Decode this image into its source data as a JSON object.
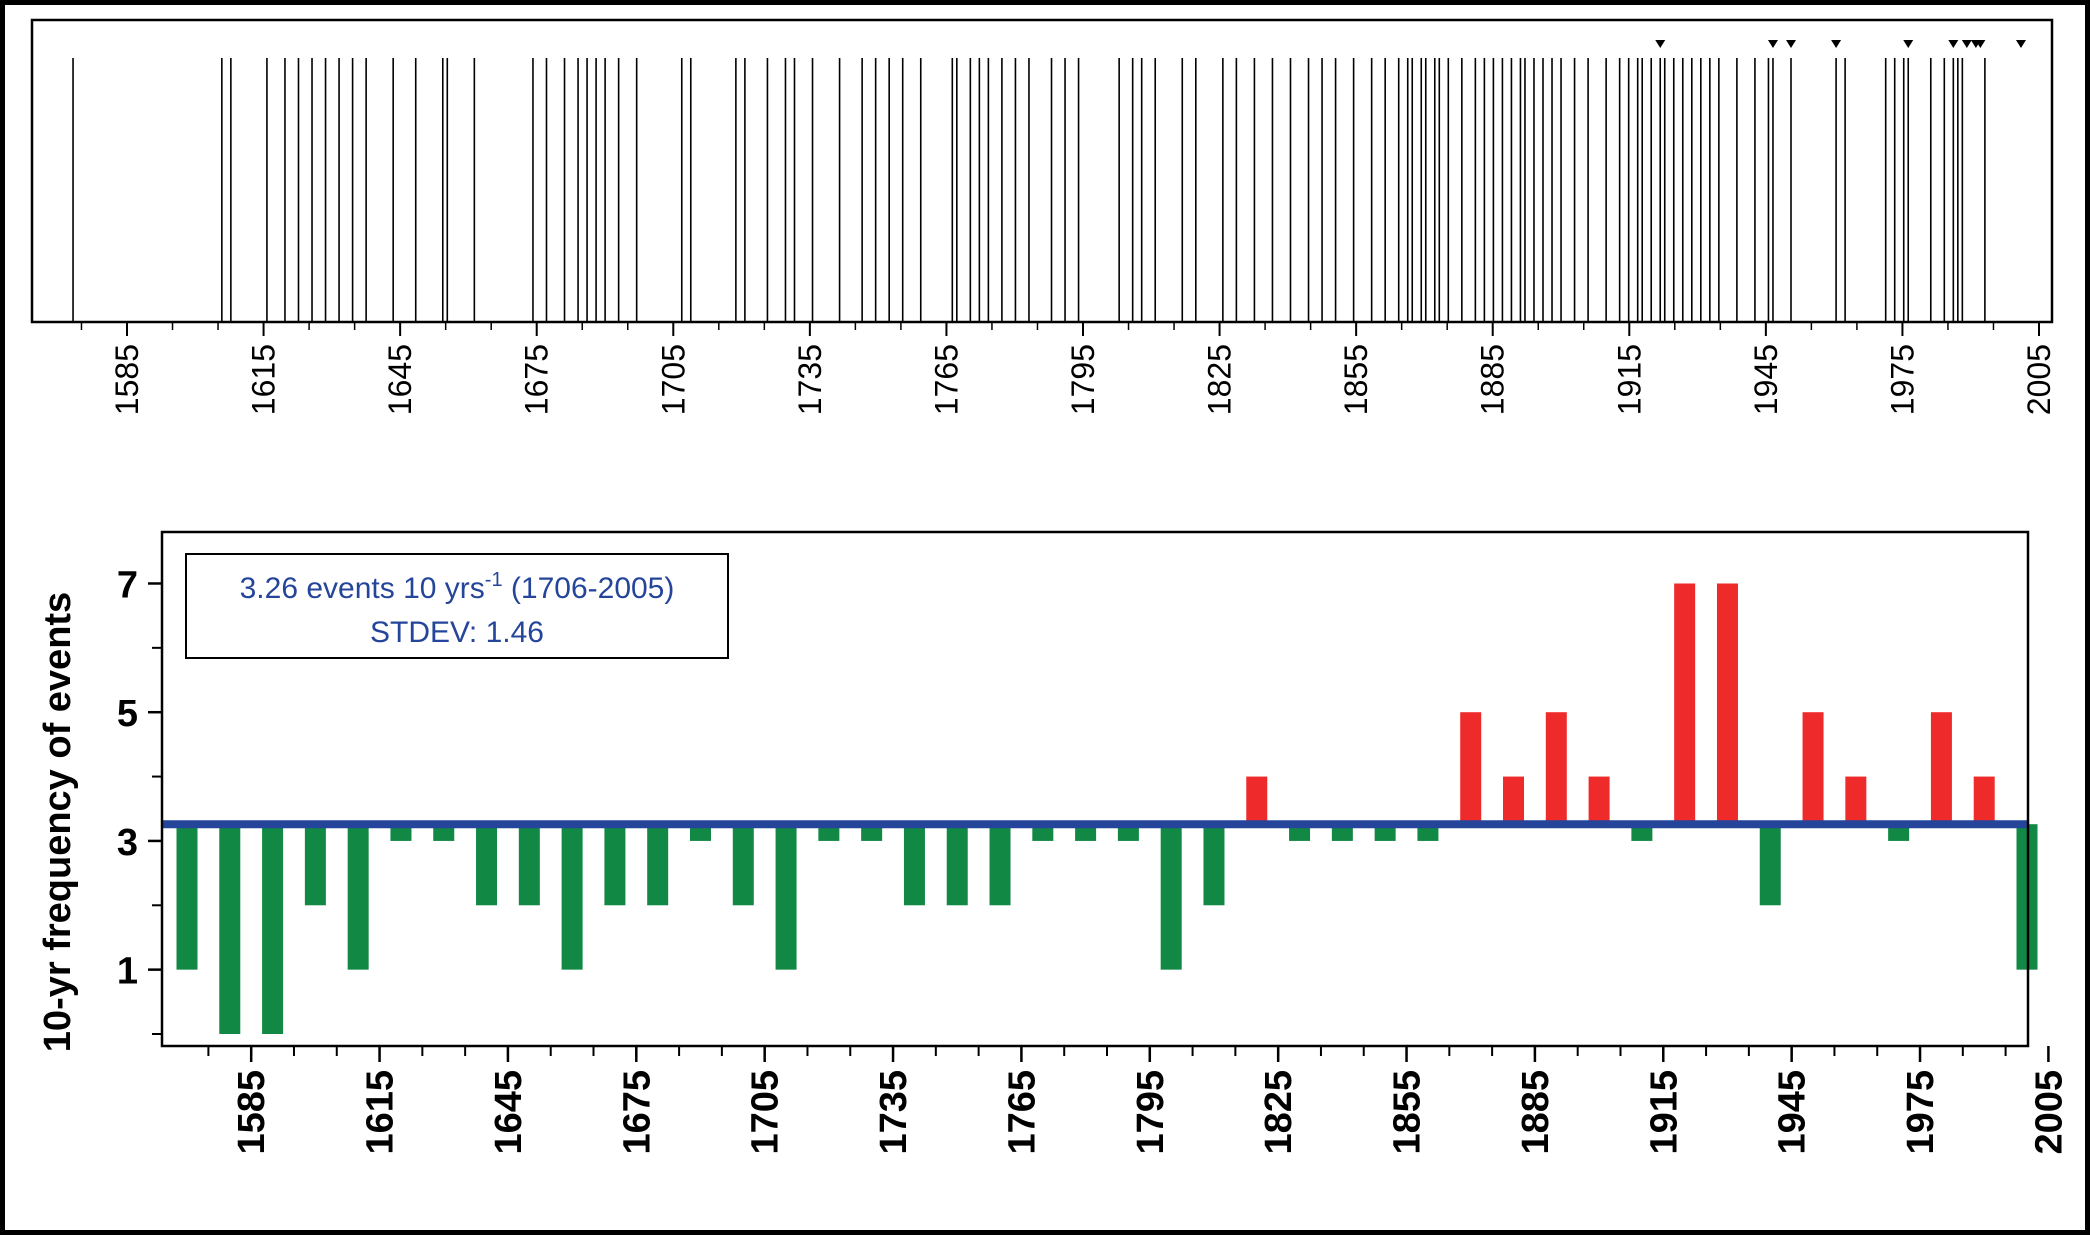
{
  "chart_data": [
    {
      "type": "event-timeline",
      "xlim": [
        1565,
        2005
      ],
      "tick_start": 1585,
      "tick_step": 30,
      "tick_labels": [
        "1585",
        "1615",
        "1645",
        "1675",
        "1705",
        "1735",
        "1765",
        "1795",
        "1825",
        "1855",
        "1885",
        "1915",
        "1945",
        "1975",
        "2005"
      ],
      "event_years": [
        1569,
        1602,
        1604,
        1612,
        1616,
        1619,
        1622,
        1625,
        1628,
        1631,
        1634,
        1640,
        1645,
        1651,
        1652,
        1658,
        1671,
        1674,
        1678,
        1681,
        1683,
        1685,
        1687,
        1690,
        1694,
        1704,
        1706,
        1716,
        1718,
        1723,
        1727,
        1729,
        1733,
        1739,
        1744,
        1747,
        1750,
        1753,
        1757,
        1764,
        1765,
        1768,
        1770,
        1772,
        1775,
        1778,
        1781,
        1786,
        1789,
        1792,
        1801,
        1804,
        1806,
        1809,
        1815,
        1818,
        1824,
        1827,
        1831,
        1835,
        1839,
        1843,
        1846,
        1849,
        1853,
        1857,
        1860,
        1863,
        1865,
        1866,
        1868,
        1869,
        1871,
        1872,
        1874,
        1877,
        1880,
        1882,
        1884,
        1886,
        1888,
        1890,
        1891,
        1893,
        1895,
        1897,
        1899,
        1902,
        1905,
        1909,
        1912,
        1914,
        1916,
        1917,
        1919,
        1921,
        1922,
        1924,
        1926,
        1928,
        1930,
        1932,
        1934,
        1938,
        1942,
        1945,
        1946,
        1950,
        1960,
        1962,
        1971,
        1973,
        1975,
        1976,
        1981,
        1984,
        1986,
        1987,
        1988,
        1993
      ],
      "marked_years": [
        1921,
        1946,
        1950,
        1960,
        1976,
        1986,
        1989,
        1991,
        1992,
        2001
      ]
    },
    {
      "type": "bar",
      "ylabel": "10-yr frequency of events",
      "ylim": [
        0,
        7.8
      ],
      "yticks_major": [
        1,
        3,
        5,
        7
      ],
      "yticks_minor": [
        0,
        2,
        4,
        6
      ],
      "baseline": 3.26,
      "xlim": [
        1565,
        2005
      ],
      "tick_start": 1585,
      "tick_step": 30,
      "minor_step": 10,
      "tick_labels": [
        "1585",
        "1615",
        "1645",
        "1675",
        "1705",
        "1735",
        "1765",
        "1795",
        "1825",
        "1855",
        "1885",
        "1915",
        "1945",
        "1975",
        "2005"
      ],
      "decades": [
        1570,
        1580,
        1590,
        1600,
        1610,
        1620,
        1630,
        1640,
        1650,
        1660,
        1670,
        1680,
        1690,
        1700,
        1710,
        1720,
        1730,
        1740,
        1750,
        1760,
        1770,
        1780,
        1790,
        1800,
        1810,
        1820,
        1830,
        1840,
        1850,
        1860,
        1870,
        1880,
        1890,
        1900,
        1910,
        1920,
        1930,
        1940,
        1950,
        1960,
        1970,
        1980,
        1990,
        2000
      ],
      "values": [
        1,
        0,
        0,
        2,
        1,
        3,
        3,
        2,
        2,
        1,
        2,
        2,
        3,
        2,
        1,
        3,
        3,
        2,
        2,
        2,
        3,
        3,
        3,
        1,
        2,
        4,
        3,
        3,
        3,
        3,
        5,
        4,
        5,
        4,
        3,
        7,
        7,
        2,
        5,
        4,
        3,
        5,
        4,
        1
      ],
      "colors": {
        "above": "#ee2a2a",
        "below": "#118844",
        "baseline": "#24459a"
      },
      "legend": {
        "line1_prefix": "3.26 events 10 yrs",
        "line1_sup": "-1",
        "line1_suffix": " (1706-2005)",
        "line2": "STDEV: 1.46"
      }
    }
  ]
}
